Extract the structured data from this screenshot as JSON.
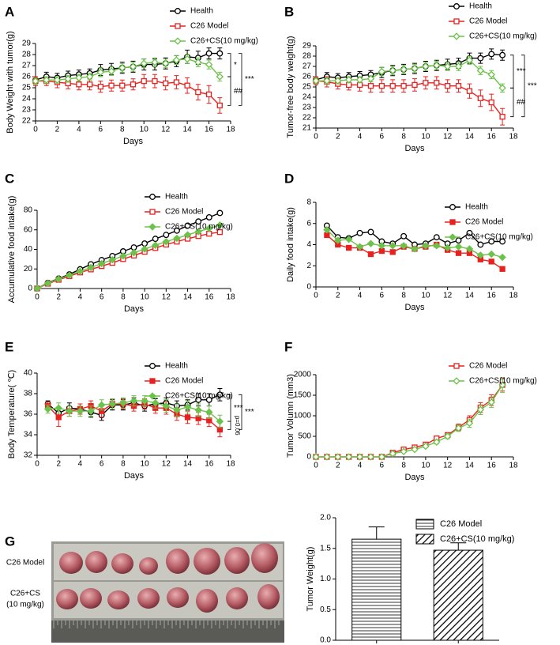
{
  "chart_data": [
    {
      "type": "line",
      "panel": "A",
      "x_label": "Days",
      "y_label": "Body Weight with tumor(g)",
      "x": [
        0,
        1,
        2,
        3,
        4,
        5,
        6,
        7,
        8,
        9,
        10,
        11,
        12,
        13,
        14,
        15,
        16,
        17
      ],
      "xlim": [
        0,
        18
      ],
      "xticks": [
        0,
        2,
        4,
        6,
        8,
        10,
        12,
        14,
        16,
        18
      ],
      "ylim": [
        22,
        29
      ],
      "yticks": [
        22,
        23,
        24,
        25,
        26,
        27,
        28,
        29
      ],
      "series": [
        {
          "name": "Health",
          "color": "#000000",
          "marker": "circle",
          "filled": false,
          "values": [
            25.7,
            26.0,
            25.9,
            26.1,
            26.2,
            26.3,
            26.6,
            26.7,
            26.8,
            26.9,
            27.1,
            27.1,
            27.2,
            27.4,
            27.8,
            27.7,
            28.1,
            28.1
          ],
          "errors": [
            0.3,
            0.4,
            0.4,
            0.4,
            0.4,
            0.4,
            0.5,
            0.5,
            0.5,
            0.5,
            0.5,
            0.5,
            0.5,
            0.5,
            0.6,
            0.6,
            0.5,
            0.5
          ]
        },
        {
          "name": "C26 Model",
          "color": "#e8211f",
          "marker": "square",
          "filled": false,
          "values": [
            25.6,
            25.6,
            25.5,
            25.4,
            25.3,
            25.3,
            25.1,
            25.2,
            25.2,
            25.3,
            25.6,
            25.6,
            25.4,
            25.5,
            25.2,
            24.6,
            24.4,
            23.4
          ],
          "errors": [
            0.4,
            0.4,
            0.5,
            0.5,
            0.5,
            0.5,
            0.5,
            0.5,
            0.5,
            0.5,
            0.6,
            0.6,
            0.6,
            0.6,
            0.7,
            0.7,
            0.8,
            0.7
          ]
        },
        {
          "name": "C26+CS(10 mg/kg)",
          "color": "#6cc24a",
          "marker": "diamond",
          "filled": false,
          "values": [
            25.6,
            25.7,
            25.7,
            25.8,
            25.9,
            26.0,
            26.4,
            26.5,
            26.8,
            26.9,
            27.2,
            27.3,
            27.2,
            27.5,
            27.6,
            27.3,
            27.1,
            26.0
          ],
          "errors": [
            0.3,
            0.3,
            0.3,
            0.3,
            0.3,
            0.3,
            0.4,
            0.4,
            0.4,
            0.4,
            0.4,
            0.4,
            0.4,
            0.4,
            0.4,
            0.4,
            0.4,
            0.4
          ]
        }
      ],
      "annotations": [
        "*",
        "***",
        "##"
      ]
    },
    {
      "type": "line",
      "panel": "B",
      "x_label": "Days",
      "y_label": "Tumor-free body weight(g)",
      "x": [
        0,
        1,
        2,
        3,
        4,
        5,
        6,
        7,
        8,
        9,
        10,
        11,
        12,
        13,
        14,
        15,
        16,
        17
      ],
      "xlim": [
        0,
        18
      ],
      "xticks": [
        0,
        2,
        4,
        6,
        8,
        10,
        12,
        14,
        16,
        18
      ],
      "ylim": [
        21,
        29
      ],
      "yticks": [
        21,
        22,
        23,
        24,
        25,
        26,
        27,
        28,
        29
      ],
      "series": [
        {
          "name": "Health",
          "color": "#000000",
          "marker": "circle",
          "filled": false,
          "values": [
            25.7,
            26.0,
            25.9,
            26.0,
            26.1,
            26.2,
            26.4,
            26.6,
            26.7,
            26.8,
            27.0,
            27.1,
            27.2,
            27.3,
            27.8,
            27.8,
            28.2,
            28.1
          ],
          "errors": [
            0.3,
            0.4,
            0.4,
            0.4,
            0.4,
            0.4,
            0.5,
            0.5,
            0.5,
            0.5,
            0.5,
            0.5,
            0.5,
            0.5,
            0.5,
            0.5,
            0.5,
            0.5
          ]
        },
        {
          "name": "C26 Model",
          "color": "#e8211f",
          "marker": "square",
          "filled": false,
          "values": [
            25.6,
            25.5,
            25.3,
            25.2,
            25.2,
            25.1,
            25.1,
            25.1,
            25.1,
            25.2,
            25.4,
            25.4,
            25.1,
            25.1,
            24.6,
            23.9,
            23.5,
            22.1
          ],
          "errors": [
            0.4,
            0.5,
            0.5,
            0.5,
            0.6,
            0.6,
            0.6,
            0.6,
            0.6,
            0.6,
            0.6,
            0.6,
            0.6,
            0.6,
            0.7,
            0.8,
            0.8,
            0.8
          ]
        },
        {
          "name": "C26+CS(10 mg/kg)",
          "color": "#6cc24a",
          "marker": "diamond",
          "filled": false,
          "values": [
            25.6,
            25.6,
            25.6,
            25.7,
            25.7,
            25.8,
            26.5,
            26.6,
            26.7,
            26.8,
            27.0,
            27.1,
            27.0,
            27.0,
            27.6,
            26.6,
            26.2,
            24.9
          ],
          "errors": [
            0.3,
            0.3,
            0.3,
            0.3,
            0.3,
            0.3,
            0.4,
            0.4,
            0.4,
            0.4,
            0.4,
            0.4,
            0.4,
            0.4,
            0.4,
            0.4,
            0.4,
            0.4
          ]
        }
      ],
      "annotations": [
        "***",
        "***",
        "##"
      ]
    },
    {
      "type": "line",
      "panel": "C",
      "x_label": "Days",
      "y_label": "Accumulative food intake(g)",
      "x": [
        0,
        1,
        2,
        3,
        4,
        5,
        6,
        7,
        8,
        9,
        10,
        11,
        12,
        13,
        14,
        15,
        16,
        17
      ],
      "xlim": [
        0,
        18
      ],
      "xticks": [
        0,
        2,
        4,
        6,
        8,
        10,
        12,
        14,
        16,
        18
      ],
      "ylim": [
        0,
        80
      ],
      "yticks": [
        0,
        20,
        40,
        60,
        80
      ],
      "series": [
        {
          "name": "Health",
          "color": "#000000",
          "marker": "circle",
          "filled": false,
          "values": [
            0,
            5.8,
            10.2,
            14.5,
            19.7,
            24.8,
            29.1,
            33.2,
            38.0,
            42.0,
            46.0,
            50.8,
            54.8,
            59.2,
            64.3,
            68.5,
            72.8,
            77.2
          ]
        },
        {
          "name": "C26 Model",
          "color": "#e8211f",
          "marker": "square",
          "filled": false,
          "values": [
            0,
            4.9,
            8.9,
            12.6,
            16.4,
            19.5,
            22.9,
            26.2,
            30.1,
            33.7,
            37.5,
            41.4,
            44.9,
            47.9,
            50.9,
            53.6,
            56.0,
            57.7
          ]
        },
        {
          "name": "C26+CS(10 mg/kg)",
          "color": "#6cc24a",
          "marker": "diamond",
          "filled": true,
          "values": [
            0,
            5.4,
            9.8,
            13.6,
            17.6,
            21.5,
            25.5,
            29.4,
            33.3,
            36.6,
            40.3,
            44.2,
            47.9,
            51.3,
            54.9,
            58.2,
            61.5,
            64.8
          ]
        }
      ]
    },
    {
      "type": "line",
      "panel": "D",
      "x_label": "Days",
      "y_label": "Daily food intake(g)",
      "x": [
        1,
        2,
        3,
        4,
        5,
        6,
        7,
        8,
        9,
        10,
        11,
        12,
        13,
        14,
        15,
        16,
        17
      ],
      "xlim": [
        0,
        18
      ],
      "xticks": [
        0,
        2,
        4,
        6,
        8,
        10,
        12,
        14,
        16,
        18
      ],
      "ylim": [
        0,
        8
      ],
      "yticks": [
        0,
        2,
        4,
        6,
        8
      ],
      "series": [
        {
          "name": "Health",
          "color": "#000000",
          "marker": "circle",
          "filled": false,
          "values": [
            5.8,
            4.7,
            4.6,
            5.1,
            5.2,
            4.3,
            4.1,
            4.8,
            4.0,
            4.1,
            4.7,
            4.1,
            4.4,
            5.1,
            4.0,
            4.3,
            4.3
          ]
        },
        {
          "name": "C26 Model",
          "color": "#e8211f",
          "marker": "square",
          "filled": true,
          "values": [
            4.9,
            4.0,
            3.7,
            3.7,
            3.1,
            3.4,
            3.3,
            3.8,
            3.6,
            3.8,
            4.0,
            3.5,
            3.2,
            3.2,
            2.6,
            2.4,
            1.7
          ]
        },
        {
          "name": "C26+CS(10 mg/kg)",
          "color": "#6cc24a",
          "marker": "diamond",
          "filled": true,
          "values": [
            5.4,
            4.4,
            4.5,
            3.8,
            4.1,
            3.9,
            3.9,
            3.9,
            3.6,
            3.9,
            3.9,
            3.7,
            3.8,
            3.6,
            3.0,
            3.1,
            2.8
          ]
        }
      ]
    },
    {
      "type": "line",
      "panel": "E",
      "x_label": "Days",
      "y_label": "Body Temperature( ℃)",
      "x": [
        1,
        2,
        3,
        4,
        5,
        6,
        7,
        8,
        9,
        10,
        11,
        12,
        13,
        14,
        15,
        16,
        17
      ],
      "xlim": [
        0,
        18
      ],
      "xticks": [
        0,
        2,
        4,
        6,
        8,
        10,
        12,
        14,
        16,
        18
      ],
      "ylim": [
        32,
        40
      ],
      "yticks": [
        32,
        34,
        36,
        38,
        40
      ],
      "series": [
        {
          "name": "Health",
          "color": "#000000",
          "marker": "circle",
          "filled": false,
          "values": [
            37.0,
            36.1,
            36.6,
            36.5,
            36.2,
            35.9,
            36.9,
            36.9,
            37.1,
            36.8,
            37.0,
            37.1,
            36.8,
            36.9,
            37.4,
            37.4,
            37.9
          ],
          "errors": [
            0.3,
            0.5,
            0.5,
            0.5,
            0.5,
            0.5,
            0.5,
            0.5,
            0.5,
            0.5,
            0.5,
            0.5,
            0.5,
            0.5,
            0.6,
            0.6,
            0.6
          ]
        },
        {
          "name": "C26 Model",
          "color": "#e8211f",
          "marker": "square",
          "filled": true,
          "values": [
            36.8,
            35.7,
            36.3,
            36.5,
            36.8,
            36.3,
            37.0,
            37.0,
            36.8,
            37.0,
            36.6,
            36.6,
            36.0,
            35.7,
            35.6,
            35.4,
            34.5
          ],
          "errors": [
            0.4,
            0.9,
            0.5,
            0.5,
            0.5,
            0.6,
            0.5,
            0.5,
            0.5,
            0.5,
            0.5,
            0.6,
            0.6,
            0.6,
            0.6,
            0.6,
            0.7
          ]
        },
        {
          "name": "C26+CS(10 mg/kg)",
          "color": "#6cc24a",
          "marker": "diamond",
          "filled": true,
          "values": [
            36.5,
            36.6,
            36.3,
            36.3,
            36.3,
            36.9,
            37.0,
            37.1,
            37.3,
            37.3,
            37.1,
            36.8,
            36.4,
            36.7,
            36.4,
            36.2,
            35.3
          ],
          "errors": [
            0.4,
            0.5,
            0.5,
            0.5,
            0.5,
            0.5,
            0.5,
            0.5,
            0.5,
            0.5,
            0.5,
            0.6,
            0.6,
            0.6,
            0.6,
            0.6,
            0.6
          ]
        }
      ],
      "annotations": [
        "***",
        "***",
        "p=0.06"
      ]
    },
    {
      "type": "line",
      "panel": "F",
      "x_label": "Days",
      "y_label": "Tumor Volumn (mm3)",
      "x": [
        0,
        1,
        2,
        3,
        4,
        5,
        6,
        7,
        8,
        9,
        10,
        11,
        12,
        13,
        14,
        15,
        16,
        17
      ],
      "xlim": [
        0,
        18
      ],
      "xticks": [
        0,
        2,
        4,
        6,
        8,
        10,
        12,
        14,
        16,
        18
      ],
      "ylim": [
        0,
        2000
      ],
      "yticks": [
        0,
        500,
        1000,
        1500,
        2000
      ],
      "series": [
        {
          "name": "C26 Model",
          "color": "#e8211f",
          "marker": "square",
          "filled": false,
          "values": [
            0,
            0,
            0,
            0,
            0,
            0,
            0,
            100,
            180,
            230,
            300,
            450,
            530,
            720,
            900,
            1200,
            1380,
            1750
          ],
          "errors": [
            0,
            0,
            0,
            0,
            0,
            0,
            0,
            20,
            25,
            30,
            40,
            50,
            60,
            80,
            100,
            120,
            130,
            150
          ]
        },
        {
          "name": "C26+CS(10 mg/kg)",
          "color": "#6cc24a",
          "marker": "diamond",
          "filled": false,
          "values": [
            0,
            0,
            0,
            0,
            0,
            0,
            0,
            80,
            130,
            180,
            260,
            360,
            500,
            700,
            820,
            1150,
            1330,
            1750
          ],
          "errors": [
            0,
            0,
            0,
            0,
            0,
            0,
            0,
            15,
            20,
            25,
            35,
            45,
            60,
            80,
            100,
            120,
            130,
            180
          ]
        }
      ]
    },
    {
      "type": "bar",
      "panel": "G",
      "y_label": "Tumor Weight(g)",
      "categories": [
        "C26 Model",
        "C26+CS(10 mg/kg)"
      ],
      "values": [
        1.65,
        1.47
      ],
      "errors": [
        0.2,
        0.12
      ],
      "patterns": [
        "horizontal",
        "diagonal"
      ],
      "ylim": [
        0,
        2
      ],
      "yticks": [
        {
          "value": 0,
          "label": "0.0"
        },
        {
          "value": 0.5,
          "label": "0.5"
        },
        {
          "value": 1,
          "label": "1.0"
        },
        {
          "value": 1.5,
          "label": "1.5"
        },
        {
          "value": 2,
          "label": "2.0"
        }
      ],
      "photo_rows": [
        [
          "C26 Model"
        ],
        [
          "C26+CS",
          "(10 mg/kg)"
        ]
      ]
    }
  ]
}
